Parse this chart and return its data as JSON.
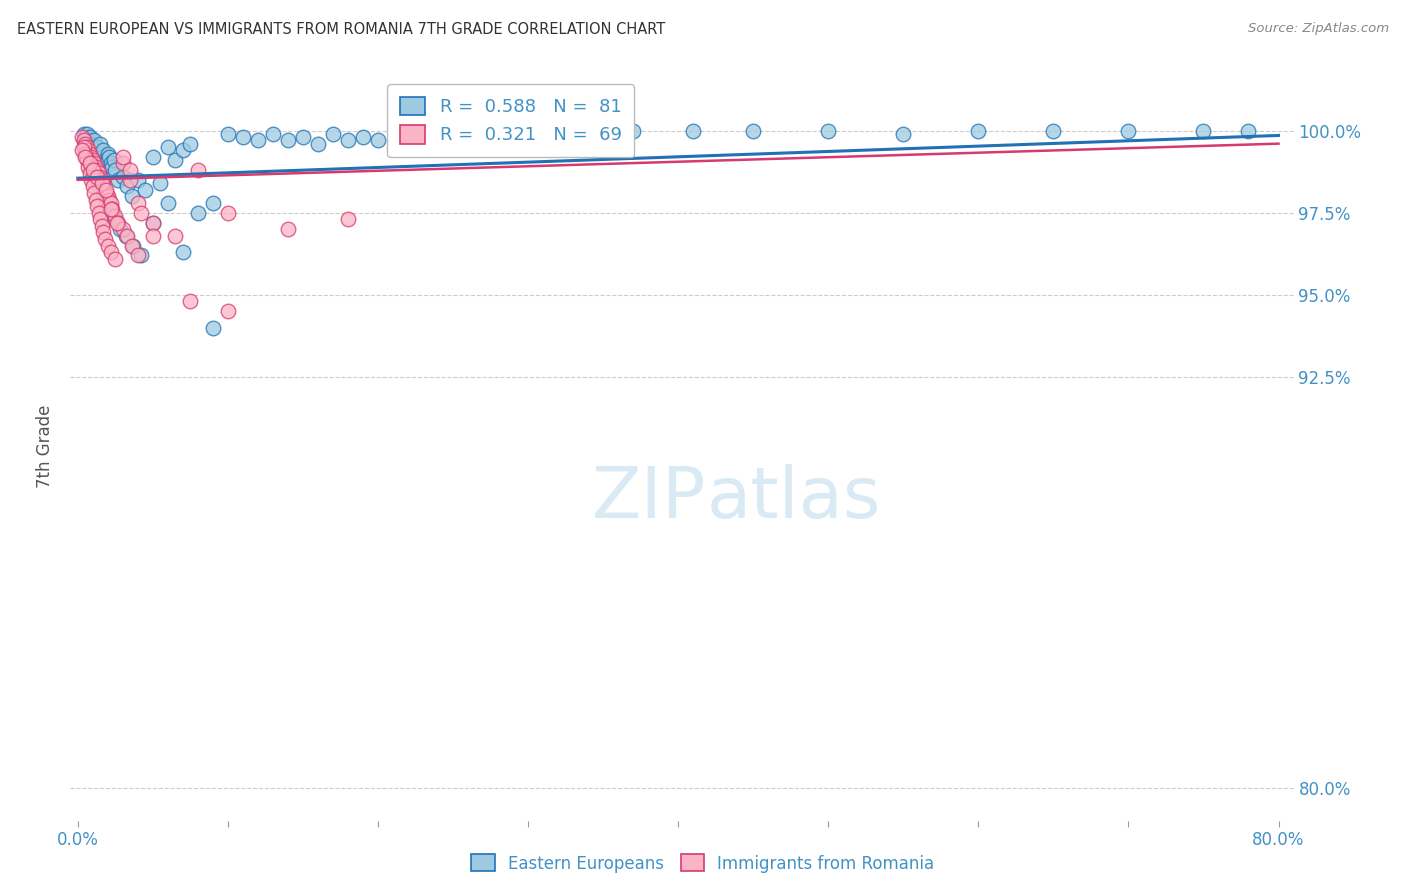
{
  "title": "EASTERN EUROPEAN VS IMMIGRANTS FROM ROMANIA 7TH GRADE CORRELATION CHART",
  "source": "Source: ZipAtlas.com",
  "ylabel": "7th Grade",
  "yaxis_ticks": [
    80.0,
    92.5,
    95.0,
    97.5,
    100.0
  ],
  "yaxis_tick_labels": [
    "80.0%",
    "92.5%",
    "95.0%",
    "97.5%",
    "100.0%"
  ],
  "xlim": [
    -0.5,
    81.0
  ],
  "ylim": [
    79.0,
    101.8
  ],
  "legend_r1": "0.588",
  "legend_n1": "81",
  "legend_r2": "0.321",
  "legend_n2": "69",
  "blue_color": "#9ecae1",
  "pink_color": "#fbb4c6",
  "line_blue": "#2171b5",
  "line_pink": "#d63a6e",
  "axis_label_color": "#4292c6",
  "watermark_color": "#daeaf5",
  "blue_x": [
    0.4,
    0.5,
    0.6,
    0.7,
    0.8,
    0.9,
    1.0,
    1.1,
    1.2,
    1.3,
    1.4,
    1.5,
    1.6,
    1.7,
    1.8,
    1.9,
    2.0,
    2.1,
    2.2,
    2.3,
    2.4,
    2.5,
    2.7,
    3.0,
    3.3,
    3.6,
    4.0,
    4.5,
    5.0,
    5.5,
    6.0,
    6.5,
    7.0,
    7.5,
    8.0,
    9.0,
    10.0,
    11.0,
    12.0,
    13.0,
    14.0,
    15.0,
    16.0,
    17.0,
    18.0,
    19.0,
    20.0,
    22.0,
    24.0,
    27.0,
    30.0,
    33.0,
    37.0,
    41.0,
    45.0,
    50.0,
    55.0,
    60.0,
    65.0,
    70.0,
    75.0,
    78.0,
    0.5,
    0.7,
    0.9,
    1.1,
    1.3,
    1.5,
    1.7,
    1.9,
    2.1,
    2.3,
    2.5,
    2.8,
    3.2,
    3.7,
    4.2,
    5.0,
    6.0,
    7.0,
    9.0
  ],
  "blue_y": [
    99.9,
    99.8,
    99.9,
    99.7,
    99.8,
    99.6,
    99.5,
    99.7,
    99.4,
    99.5,
    99.3,
    99.6,
    99.2,
    99.4,
    99.1,
    99.0,
    99.3,
    99.2,
    99.0,
    98.9,
    99.1,
    98.8,
    98.5,
    98.6,
    98.3,
    98.0,
    98.5,
    98.2,
    99.2,
    98.4,
    99.5,
    99.1,
    99.4,
    99.6,
    97.5,
    97.8,
    99.9,
    99.8,
    99.7,
    99.9,
    99.7,
    99.8,
    99.6,
    99.9,
    99.7,
    99.8,
    99.7,
    99.9,
    99.8,
    99.9,
    100.0,
    100.0,
    100.0,
    100.0,
    100.0,
    100.0,
    99.9,
    100.0,
    100.0,
    100.0,
    100.0,
    100.0,
    99.3,
    99.1,
    98.9,
    98.7,
    98.5,
    98.3,
    98.1,
    97.9,
    97.7,
    97.5,
    97.3,
    97.0,
    96.8,
    96.5,
    96.2,
    97.2,
    97.8,
    96.3,
    94.0
  ],
  "pink_x": [
    0.3,
    0.4,
    0.5,
    0.6,
    0.7,
    0.8,
    0.9,
    1.0,
    1.1,
    1.2,
    1.3,
    1.4,
    1.5,
    1.6,
    1.7,
    1.8,
    1.9,
    2.0,
    2.1,
    2.2,
    2.3,
    2.5,
    2.7,
    3.0,
    3.3,
    3.6,
    4.0,
    0.4,
    0.5,
    0.6,
    0.7,
    0.8,
    0.9,
    1.0,
    1.1,
    1.2,
    1.3,
    1.4,
    1.5,
    1.6,
    1.7,
    1.8,
    2.0,
    2.2,
    2.5,
    3.0,
    3.5,
    4.0,
    5.0,
    6.5,
    8.0,
    10.0,
    14.0,
    18.0,
    0.3,
    0.5,
    0.8,
    1.0,
    1.3,
    1.6,
    1.9,
    2.2,
    2.6,
    3.0,
    3.5,
    4.2,
    5.0,
    7.5,
    10.0
  ],
  "pink_y": [
    99.8,
    99.7,
    99.6,
    99.5,
    99.4,
    99.3,
    99.2,
    99.1,
    99.0,
    98.9,
    98.8,
    98.7,
    98.6,
    98.5,
    98.4,
    98.2,
    98.1,
    98.0,
    97.9,
    97.8,
    97.6,
    97.4,
    97.2,
    97.0,
    96.8,
    96.5,
    96.2,
    99.5,
    99.3,
    99.1,
    98.9,
    98.7,
    98.5,
    98.3,
    98.1,
    97.9,
    97.7,
    97.5,
    97.3,
    97.1,
    96.9,
    96.7,
    96.5,
    96.3,
    96.1,
    99.0,
    98.5,
    97.8,
    97.2,
    96.8,
    98.8,
    97.5,
    97.0,
    97.3,
    99.4,
    99.2,
    99.0,
    98.8,
    98.6,
    98.4,
    98.2,
    97.6,
    97.2,
    99.2,
    98.8,
    97.5,
    96.8,
    94.8,
    94.5
  ]
}
